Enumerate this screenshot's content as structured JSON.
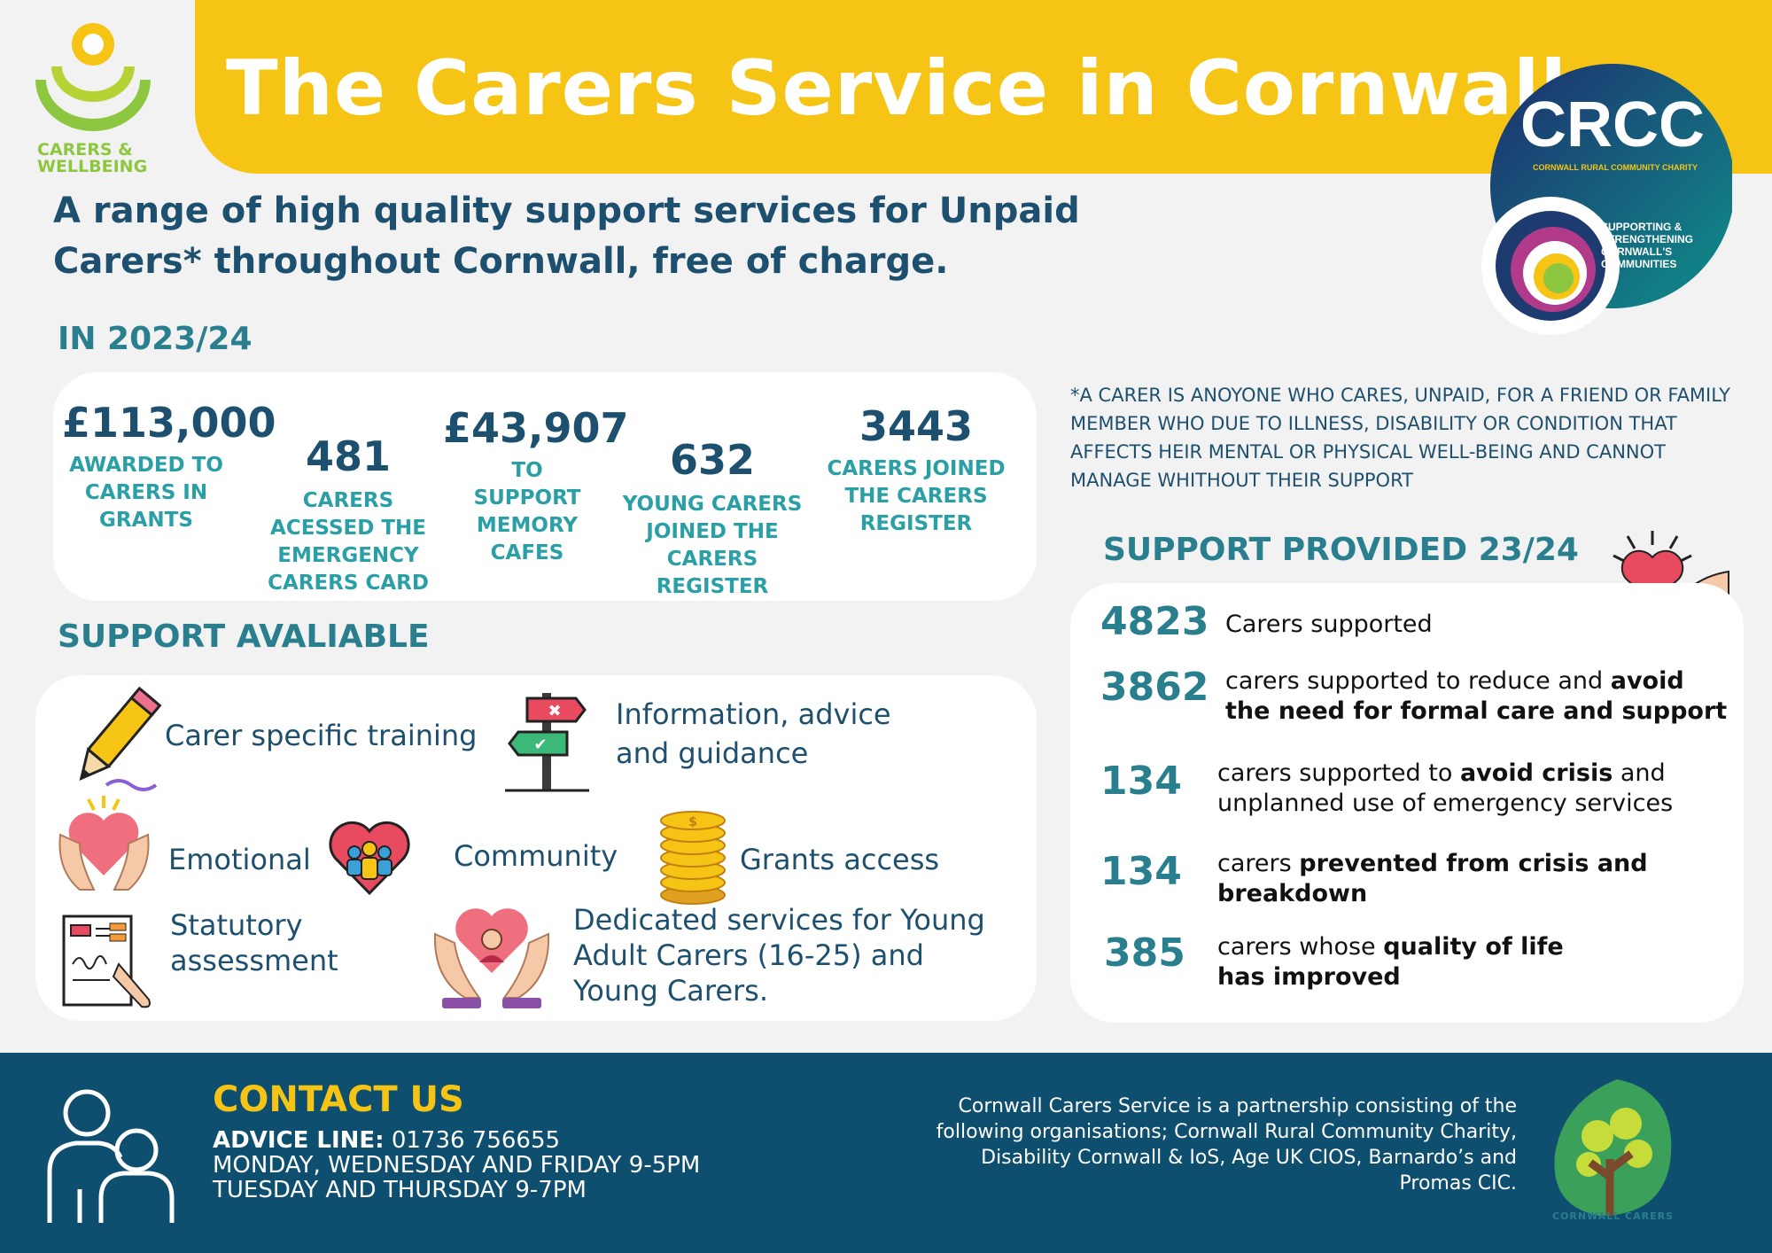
{
  "header": {
    "title": "The Carers Service in Cornwall",
    "logo_text_line1": "CARERS &",
    "logo_text_line2": "WELLBEING"
  },
  "crcc_logo": {
    "name": "CRCC",
    "subtitle": "CORNWALL RURAL COMMUNITY CHARITY",
    "tagline_lines": [
      "SUPPORTING &",
      "STRENGTHENING",
      "CORNWALL'S",
      "COMMUNITIES"
    ]
  },
  "tagline": "A range of high quality support services for Unpaid Carers* throughout Cornwall, free of charge.",
  "year_section": {
    "heading": "IN 2023/24",
    "stats": [
      {
        "value": "£113,000",
        "label": "AWARDED TO CARERS IN GRANTS"
      },
      {
        "value": "481",
        "label": "CARERS ACESSED THE EMERGENCY CARERS CARD"
      },
      {
        "value": "£43,907",
        "label": "TO SUPPORT MEMORY CAFES"
      },
      {
        "value": "632",
        "label": "YOUNG CARERS JOINED THE CARERS REGISTER"
      },
      {
        "value": "3443",
        "label": "CARERS JOINED THE CARERS REGISTER"
      }
    ]
  },
  "footnote": "*A CARER IS ANOYONE WHO CARES, UNPAID, FOR A FRIEND OR FAMILY MEMBER WHO DUE TO ILLNESS, DISABILITY OR CONDITION THAT AFFECTS HEIR MENTAL OR PHYSICAL WELL-BEING AND CANNOT MANAGE WHITHOUT THEIR SUPPORT",
  "support_available": {
    "heading": "SUPPORT AVALIABLE",
    "items": [
      {
        "label": "Carer specific training",
        "icon": "pencil-icon"
      },
      {
        "label": "Information, advice and guidance",
        "icon": "signpost-icon"
      },
      {
        "label": "Emotional",
        "icon": "hands-heart-icon"
      },
      {
        "label": "Community",
        "icon": "community-heart-icon"
      },
      {
        "label": "Grants access",
        "icon": "coins-icon"
      },
      {
        "label": "Statutory assessment",
        "icon": "document-sign-icon"
      },
      {
        "label": "Dedicated services for Young Adult Carers (16-25) and Young Carers.",
        "icon": "young-carer-icon"
      }
    ]
  },
  "support_provided": {
    "heading": "SUPPORT PROVIDED 23/24",
    "rows": [
      {
        "value": "4823",
        "text_before": "Carers supported",
        "bold": "",
        "text_after": ""
      },
      {
        "value": "3862",
        "text_before": "carers supported to reduce and ",
        "bold": "avoid the need for formal care and support",
        "text_after": ""
      },
      {
        "value": "134",
        "text_before": "carers supported to ",
        "bold": "avoid crisis",
        "text_after": " and unplanned use of emergency services"
      },
      {
        "value": "134",
        "text_before": "carers ",
        "bold": "prevented from crisis and breakdown",
        "text_after": ""
      },
      {
        "value": "385",
        "text_before": "carers whose ",
        "bold": "quality of life has improved",
        "text_after": ""
      }
    ]
  },
  "contact": {
    "heading": "CONTACT US",
    "advice_label": "ADVICE LINE:",
    "advice_number": "01736 756655",
    "hours_1": "MONDAY, WEDNESDAY AND FRIDAY 9-5PM",
    "hours_2": "TUESDAY AND THURSDAY 9-7PM"
  },
  "partnership_text": "Cornwall Carers Service is a partnership consisting of the following organisations; Cornwall Rural Community Charity, Disability Cornwall & IoS, Age UK CIOS, Barnardo’s and Promas CIC.",
  "footer_logo_text": "CORNWALL CARERS",
  "colors": {
    "yellow": "#f6c414",
    "navy": "#1d4f6e",
    "teal": "#2a7f8f",
    "aqua": "#2aa0a6",
    "footer": "#0e4e6f"
  }
}
